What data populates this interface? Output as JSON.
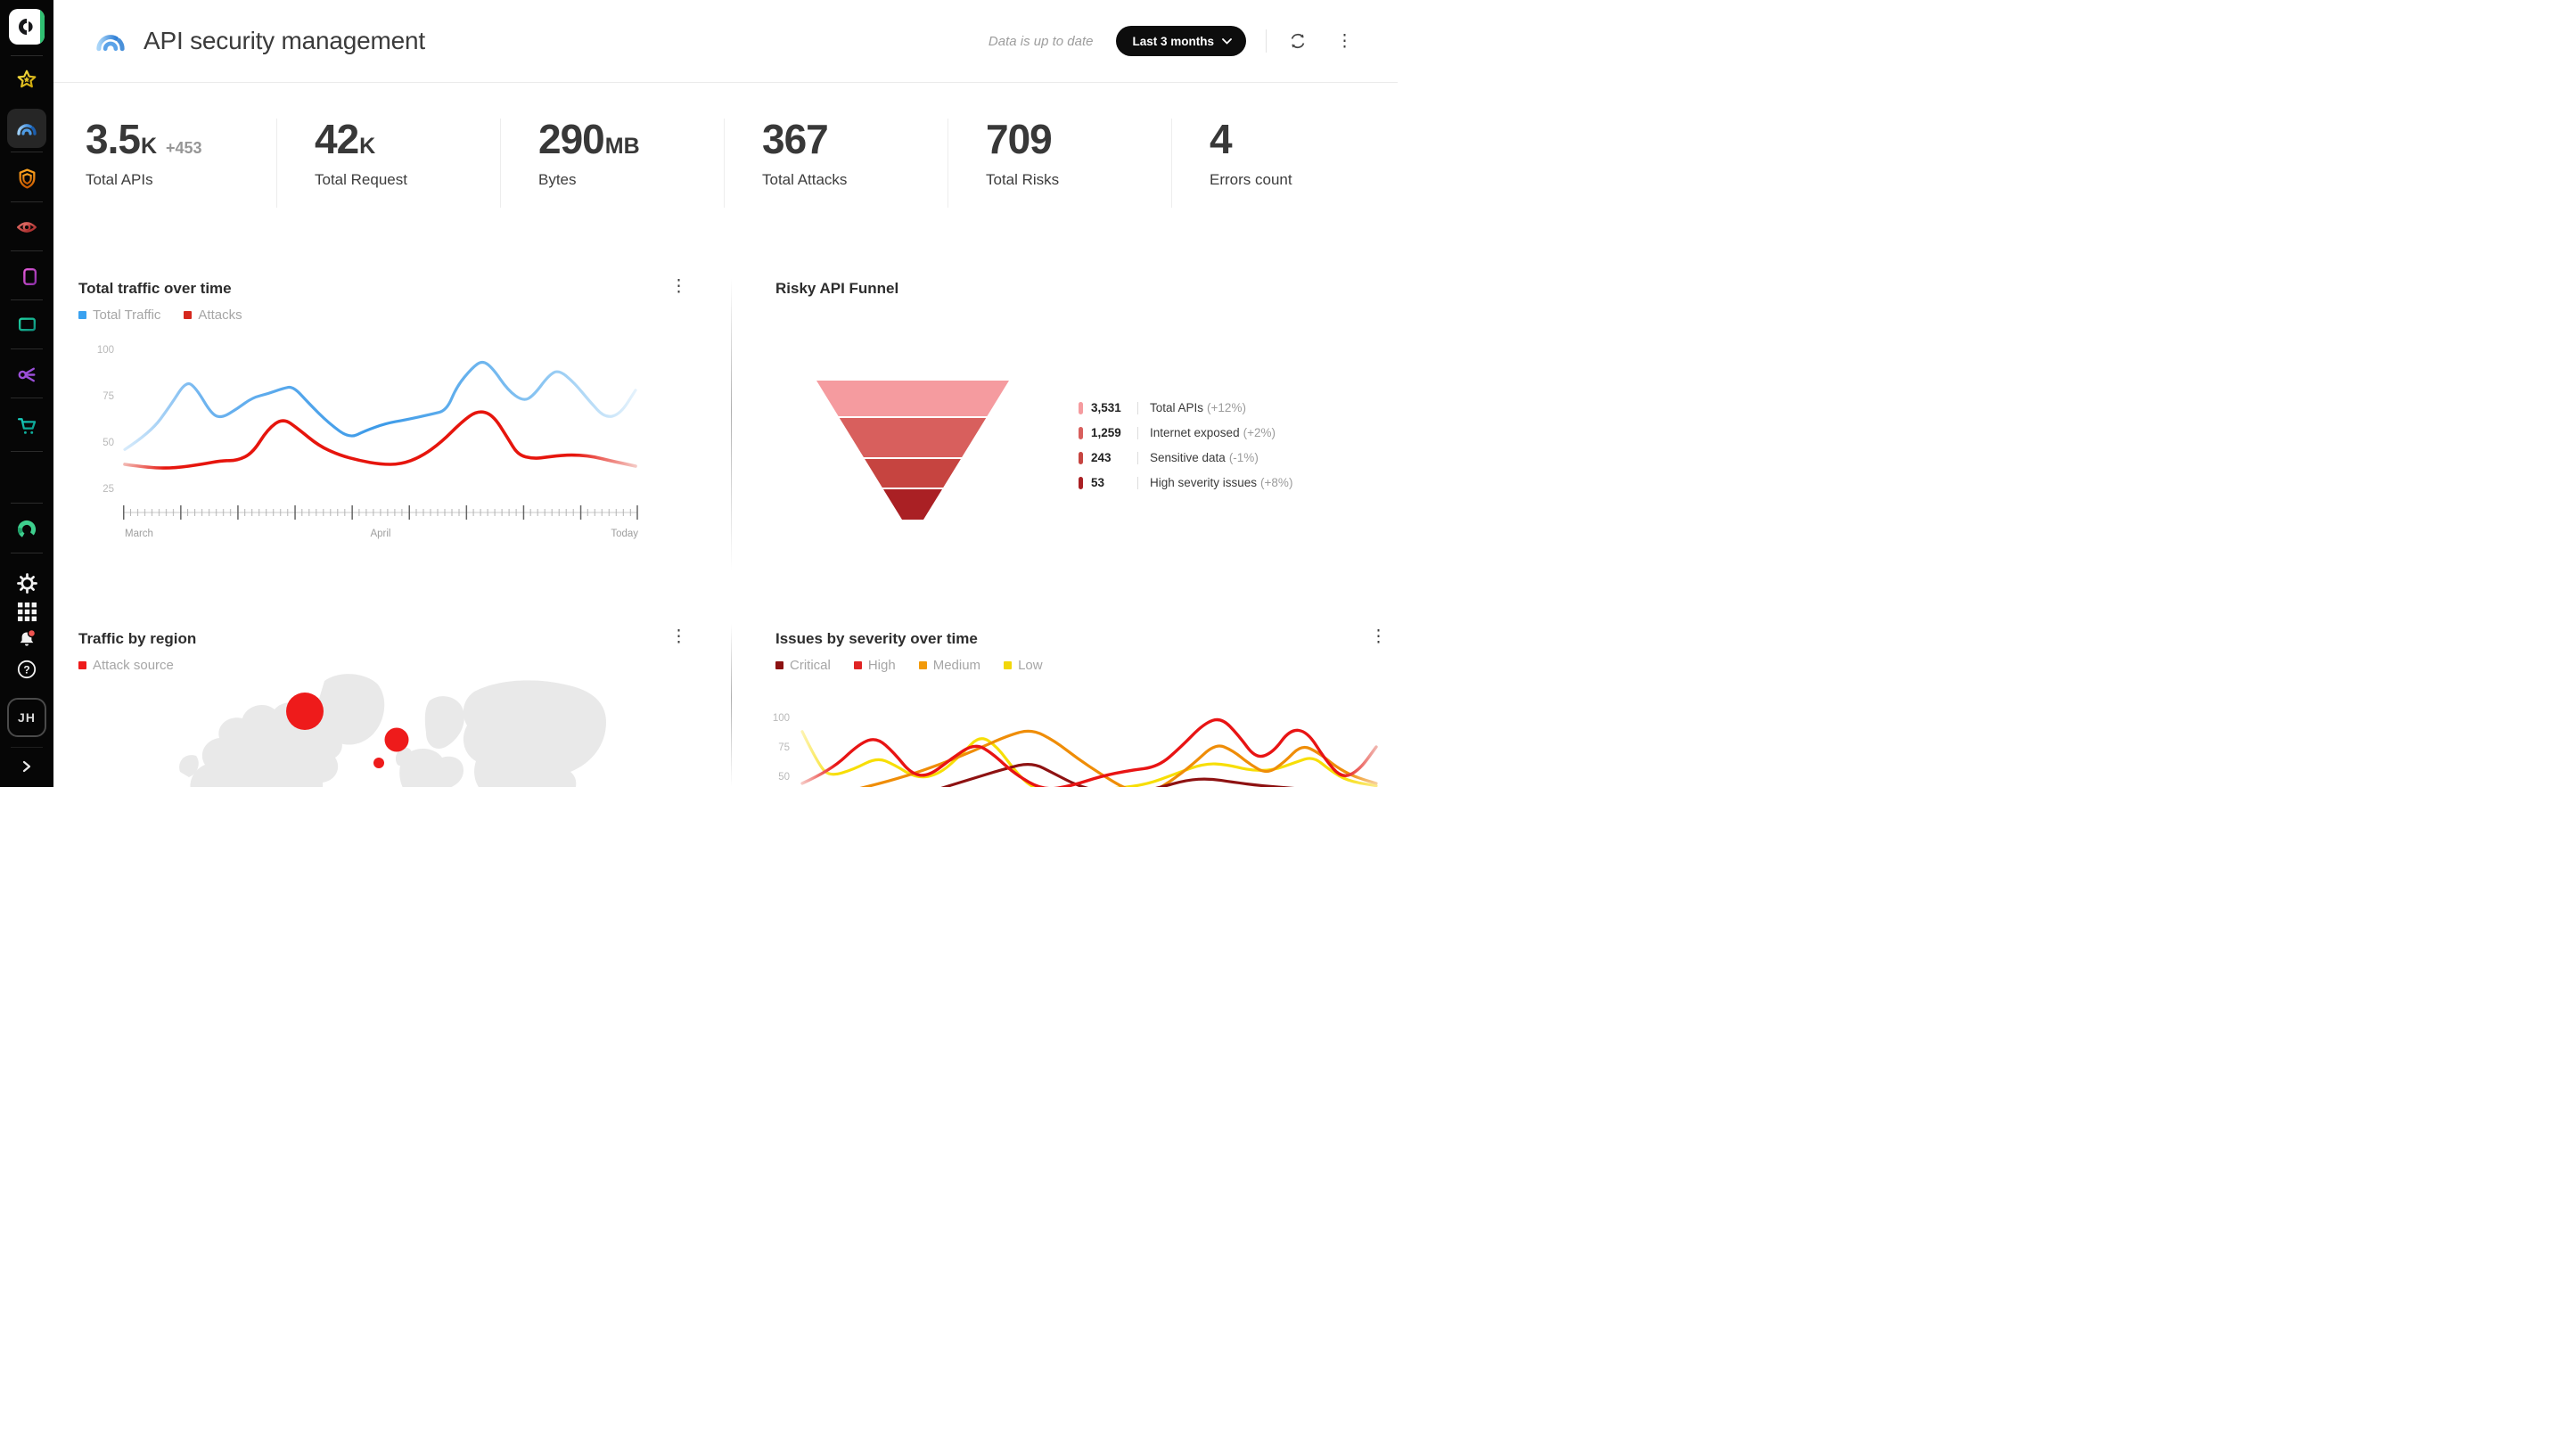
{
  "header": {
    "title": "API security management",
    "status_text": "Data is up to date",
    "range_label": "Last 3 months"
  },
  "sidebar": {
    "avatar_initials": "JH"
  },
  "stats": [
    {
      "value": "3.5",
      "suffix": "K",
      "delta": "+453",
      "label": "Total APIs"
    },
    {
      "value": "42",
      "suffix": "K",
      "delta": "",
      "label": "Total Request"
    },
    {
      "value": "290",
      "suffix": "MB",
      "delta": "",
      "label": "Bytes"
    },
    {
      "value": "367",
      "suffix": "",
      "delta": "",
      "label": "Total Attacks"
    },
    {
      "value": "709",
      "suffix": "",
      "delta": "",
      "label": "Total Risks"
    },
    {
      "value": "4",
      "suffix": "",
      "delta": "",
      "label": "Errors count"
    }
  ],
  "panels": {
    "traffic": {
      "title": "Total traffic over time",
      "y_tick_labels": [
        "100",
        "75",
        "50",
        "25"
      ],
      "x_labels": [
        "March",
        "April",
        "Today"
      ]
    },
    "funnel": {
      "title": "Risky API Funnel"
    },
    "region": {
      "title": "Traffic by region"
    },
    "severity": {
      "title": "Issues by severity over time",
      "y_tick_labels": [
        "100",
        "75",
        "50"
      ]
    }
  },
  "chart_data": [
    {
      "id": "total-traffic-over-time",
      "type": "line",
      "title": "Total traffic over time",
      "x_axis_labels": [
        "March",
        "April",
        "Today"
      ],
      "y_ticks": [
        25,
        50,
        75,
        100
      ],
      "ylim": [
        0,
        100
      ],
      "grid": false,
      "legend_position": "top-left",
      "series": [
        {
          "name": "Total Traffic",
          "color": "#3aa2f0",
          "points": [
            [
              0,
              46
            ],
            [
              0.05,
              55
            ],
            [
              0.09,
              70
            ],
            [
              0.12,
              83
            ],
            [
              0.14,
              79
            ],
            [
              0.17,
              65
            ],
            [
              0.19,
              63
            ],
            [
              0.22,
              68
            ],
            [
              0.25,
              74
            ],
            [
              0.28,
              76
            ],
            [
              0.31,
              79
            ],
            [
              0.33,
              80
            ],
            [
              0.36,
              71
            ],
            [
              0.4,
              60
            ],
            [
              0.44,
              52
            ],
            [
              0.47,
              56
            ],
            [
              0.51,
              60
            ],
            [
              0.55,
              62
            ],
            [
              0.6,
              65
            ],
            [
              0.63,
              67
            ],
            [
              0.65,
              80
            ],
            [
              0.68,
              90
            ],
            [
              0.7,
              94
            ],
            [
              0.72,
              90
            ],
            [
              0.75,
              78
            ],
            [
              0.78,
              72
            ],
            [
              0.8,
              75
            ],
            [
              0.83,
              86
            ],
            [
              0.85,
              89
            ],
            [
              0.88,
              82
            ],
            [
              0.91,
              72
            ],
            [
              0.94,
              63
            ],
            [
              0.97,
              65
            ],
            [
              1,
              78
            ]
          ]
        },
        {
          "name": "Attacks",
          "color": "#d6281e",
          "points": [
            [
              0,
              38
            ],
            [
              0.05,
              36
            ],
            [
              0.1,
              36
            ],
            [
              0.15,
              38
            ],
            [
              0.19,
              40
            ],
            [
              0.22,
              40
            ],
            [
              0.25,
              44
            ],
            [
              0.28,
              57
            ],
            [
              0.31,
              63
            ],
            [
              0.34,
              57
            ],
            [
              0.38,
              48
            ],
            [
              0.42,
              43
            ],
            [
              0.46,
              40
            ],
            [
              0.5,
              38
            ],
            [
              0.54,
              38
            ],
            [
              0.58,
              42
            ],
            [
              0.62,
              50
            ],
            [
              0.66,
              61
            ],
            [
              0.69,
              67
            ],
            [
              0.72,
              65
            ],
            [
              0.75,
              52
            ],
            [
              0.77,
              43
            ],
            [
              0.8,
              41
            ],
            [
              0.83,
              42
            ],
            [
              0.86,
              43
            ],
            [
              0.89,
              43
            ],
            [
              0.92,
              42
            ],
            [
              0.95,
              40
            ],
            [
              1,
              37
            ]
          ]
        }
      ]
    },
    {
      "id": "risky-api-funnel",
      "type": "funnel",
      "title": "Risky API Funnel",
      "stages": [
        {
          "value": 3531,
          "display_value": "3,531",
          "label": "Total APIs",
          "change": "(+12%)",
          "color": "#f59b9f"
        },
        {
          "value": 1259,
          "display_value": "1,259",
          "label": "Internet exposed",
          "change": "(+2%)",
          "color": "#d85f5d"
        },
        {
          "value": 243,
          "display_value": "243",
          "label": "Sensitive data",
          "change": "(-1%)",
          "color": "#c64440"
        },
        {
          "value": 53,
          "display_value": "53",
          "label": "High severity issues",
          "change": "(+8%)",
          "color": "#aa2024"
        }
      ]
    },
    {
      "id": "traffic-by-region",
      "type": "bubble-map",
      "title": "Traffic by region",
      "legend_label": "Attack source",
      "color": "#ee1b1b",
      "bubbles": [
        {
          "region": "north-america-greenland",
          "cx": 142,
          "cy": 50,
          "r": 21
        },
        {
          "region": "eastern-europe",
          "cx": 245,
          "cy": 82,
          "r": 13.5
        },
        {
          "region": "balkans",
          "cx": 225,
          "cy": 108,
          "r": 6
        }
      ]
    },
    {
      "id": "issues-by-severity-over-time",
      "type": "line",
      "title": "Issues by severity over time",
      "y_ticks": [
        50,
        75,
        100
      ],
      "ylim": [
        0,
        100
      ],
      "series": [
        {
          "name": "Critical",
          "color": "#8c1111",
          "points": [
            [
              0.17,
              28
            ],
            [
              0.23,
              38
            ],
            [
              0.29,
              47
            ],
            [
              0.35,
              56
            ],
            [
              0.4,
              62
            ],
            [
              0.44,
              52
            ],
            [
              0.48,
              42
            ],
            [
              0.52,
              37
            ],
            [
              0.57,
              35
            ],
            [
              0.62,
              40
            ],
            [
              0.67,
              47
            ],
            [
              0.71,
              48
            ],
            [
              0.75,
              45
            ],
            [
              0.8,
              42
            ],
            [
              0.85,
              40
            ],
            [
              0.9,
              38
            ],
            [
              0.95,
              36
            ],
            [
              1,
              34
            ]
          ]
        },
        {
          "name": "High",
          "color": "#e02424",
          "points": [
            [
              0,
              44
            ],
            [
              0.05,
              55
            ],
            [
              0.1,
              78
            ],
            [
              0.13,
              83
            ],
            [
              0.16,
              70
            ],
            [
              0.19,
              52
            ],
            [
              0.22,
              50
            ],
            [
              0.26,
              65
            ],
            [
              0.3,
              78
            ],
            [
              0.33,
              70
            ],
            [
              0.37,
              52
            ],
            [
              0.42,
              38
            ],
            [
              0.47,
              42
            ],
            [
              0.52,
              50
            ],
            [
              0.57,
              55
            ],
            [
              0.62,
              58
            ],
            [
              0.66,
              75
            ],
            [
              0.7,
              95
            ],
            [
              0.73,
              100
            ],
            [
              0.76,
              85
            ],
            [
              0.79,
              65
            ],
            [
              0.82,
              70
            ],
            [
              0.85,
              90
            ],
            [
              0.88,
              88
            ],
            [
              0.91,
              65
            ],
            [
              0.94,
              48
            ],
            [
              0.97,
              55
            ],
            [
              1,
              75
            ]
          ]
        },
        {
          "name": "Medium",
          "color": "#f29a0a",
          "points": [
            [
              0,
              28
            ],
            [
              0.06,
              35
            ],
            [
              0.12,
              42
            ],
            [
              0.18,
              50
            ],
            [
              0.24,
              60
            ],
            [
              0.3,
              72
            ],
            [
              0.36,
              85
            ],
            [
              0.4,
              90
            ],
            [
              0.44,
              80
            ],
            [
              0.48,
              65
            ],
            [
              0.52,
              52
            ],
            [
              0.56,
              40
            ],
            [
              0.6,
              34
            ],
            [
              0.64,
              45
            ],
            [
              0.68,
              60
            ],
            [
              0.72,
              78
            ],
            [
              0.75,
              72
            ],
            [
              0.78,
              60
            ],
            [
              0.81,
              52
            ],
            [
              0.84,
              62
            ],
            [
              0.87,
              77
            ],
            [
              0.9,
              70
            ],
            [
              0.93,
              58
            ],
            [
              0.96,
              50
            ],
            [
              1,
              44
            ]
          ]
        },
        {
          "name": "Low",
          "color": "#f2d70a",
          "points": [
            [
              0,
              88
            ],
            [
              0.03,
              58
            ],
            [
              0.05,
              50
            ],
            [
              0.09,
              56
            ],
            [
              0.13,
              66
            ],
            [
              0.16,
              60
            ],
            [
              0.2,
              48
            ],
            [
              0.24,
              52
            ],
            [
              0.28,
              70
            ],
            [
              0.31,
              85
            ],
            [
              0.34,
              75
            ],
            [
              0.37,
              55
            ],
            [
              0.4,
              40
            ],
            [
              0.45,
              34
            ],
            [
              0.5,
              37
            ],
            [
              0.55,
              40
            ],
            [
              0.6,
              43
            ],
            [
              0.65,
              52
            ],
            [
              0.7,
              61
            ],
            [
              0.74,
              60
            ],
            [
              0.78,
              55
            ],
            [
              0.82,
              55
            ],
            [
              0.86,
              62
            ],
            [
              0.89,
              67
            ],
            [
              0.92,
              55
            ],
            [
              0.95,
              46
            ],
            [
              1,
              42
            ]
          ]
        }
      ]
    }
  ]
}
